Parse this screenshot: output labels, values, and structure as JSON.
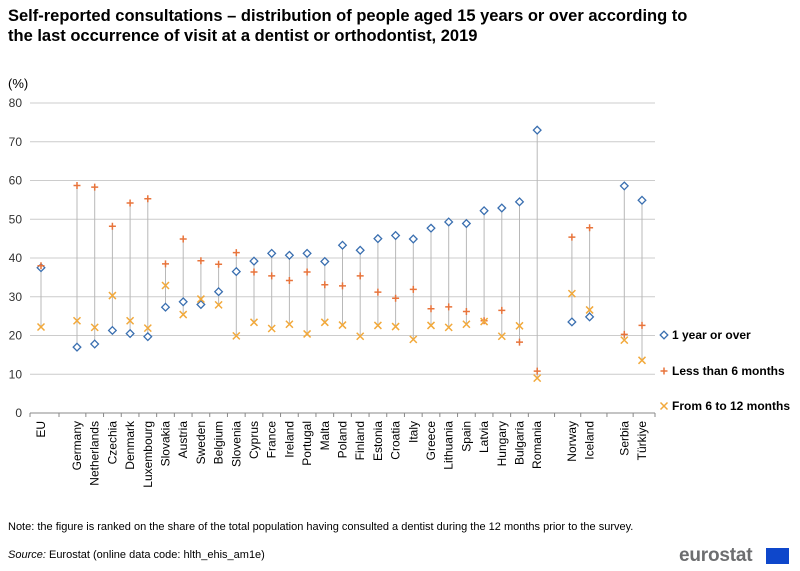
{
  "header": {
    "title": "Self-reported consultations – distribution of people aged 15 years or over according to the last occurrence of visit at a dentist or orthodontist, 2019",
    "unit": "(%)"
  },
  "chart_data": {
    "type": "scatter",
    "title": "Self-reported consultations – distribution of people aged 15 years or over according to the last occurrence of visit at a dentist or orthodontist, 2019",
    "ylabel": "(%)",
    "ylim": [
      0,
      80
    ],
    "yticks": [
      0,
      10,
      20,
      30,
      40,
      50,
      60,
      70,
      80
    ],
    "grid": true,
    "legend_position": "right",
    "categories": [
      "EU",
      "Germany",
      "Netherlands",
      "Czechia",
      "Denmark",
      "Luxembourg",
      "Slovakia",
      "Austria",
      "Sweden",
      "Belgium",
      "Slovenia",
      "Cyprus",
      "France",
      "Ireland",
      "Portugal",
      "Malta",
      "Poland",
      "Finland",
      "Estonia",
      "Croatia",
      "Italy",
      "Greece",
      "Lithuania",
      "Spain",
      "Latvia",
      "Hungary",
      "Bulgaria",
      "Romania",
      "Norway",
      "Iceland",
      "Serbia",
      "Türkiye"
    ],
    "series": [
      {
        "name": "1 year or over",
        "marker": "diamond",
        "color": "#3a6fb0",
        "values": [
          37.5,
          17,
          17.8,
          21.3,
          20.5,
          19.7,
          27.3,
          28.7,
          28,
          31.3,
          36.5,
          39.2,
          41.2,
          40.7,
          41.2,
          39.1,
          43.3,
          42,
          45,
          45.8,
          44.9,
          47.7,
          49.3,
          48.9,
          52.2,
          52.9,
          54.5,
          73,
          23.5,
          24.8,
          58.6,
          54.9
        ]
      },
      {
        "name": "Less than 6 months",
        "marker": "plus",
        "color": "#e8743b",
        "values": [
          38,
          58.7,
          58.3,
          48.2,
          54.2,
          55.3,
          38.5,
          44.9,
          39.3,
          38.4,
          41.4,
          36.4,
          35.4,
          34.2,
          36.4,
          33.1,
          32.8,
          35.4,
          31.2,
          29.6,
          31.9,
          26.9,
          27.4,
          26.2,
          23.8,
          26.5,
          18.3,
          10.8,
          45.4,
          47.8,
          20.3,
          22.6
        ]
      },
      {
        "name": "From 6 to 12 months",
        "marker": "cross",
        "color": "#f2a93b",
        "values": [
          22.2,
          23.8,
          22.1,
          30.3,
          23.8,
          21.9,
          32.9,
          25.4,
          29.4,
          27.9,
          19.9,
          23.4,
          21.8,
          22.9,
          20.4,
          23.4,
          22.7,
          19.8,
          22.6,
          22.3,
          19,
          22.6,
          22.1,
          22.9,
          23.6,
          19.8,
          22.5,
          9,
          30.8,
          26.6,
          18.8,
          13.6
        ]
      }
    ]
  },
  "footer": {
    "note": "Note: the figure is ranked on the share of the total population having consulted a dentist during the 12 months prior to the survey.",
    "source_label": "Source:",
    "source_text": " Eurostat (online data code: hlth_ehis_am1e)",
    "logo_text": "eurostat"
  },
  "colors": {
    "diamond": "#3a6fb0",
    "plus": "#e8743b",
    "cross": "#f2a93b",
    "grid": "#cccccc",
    "stem": "#b8b8b8"
  }
}
